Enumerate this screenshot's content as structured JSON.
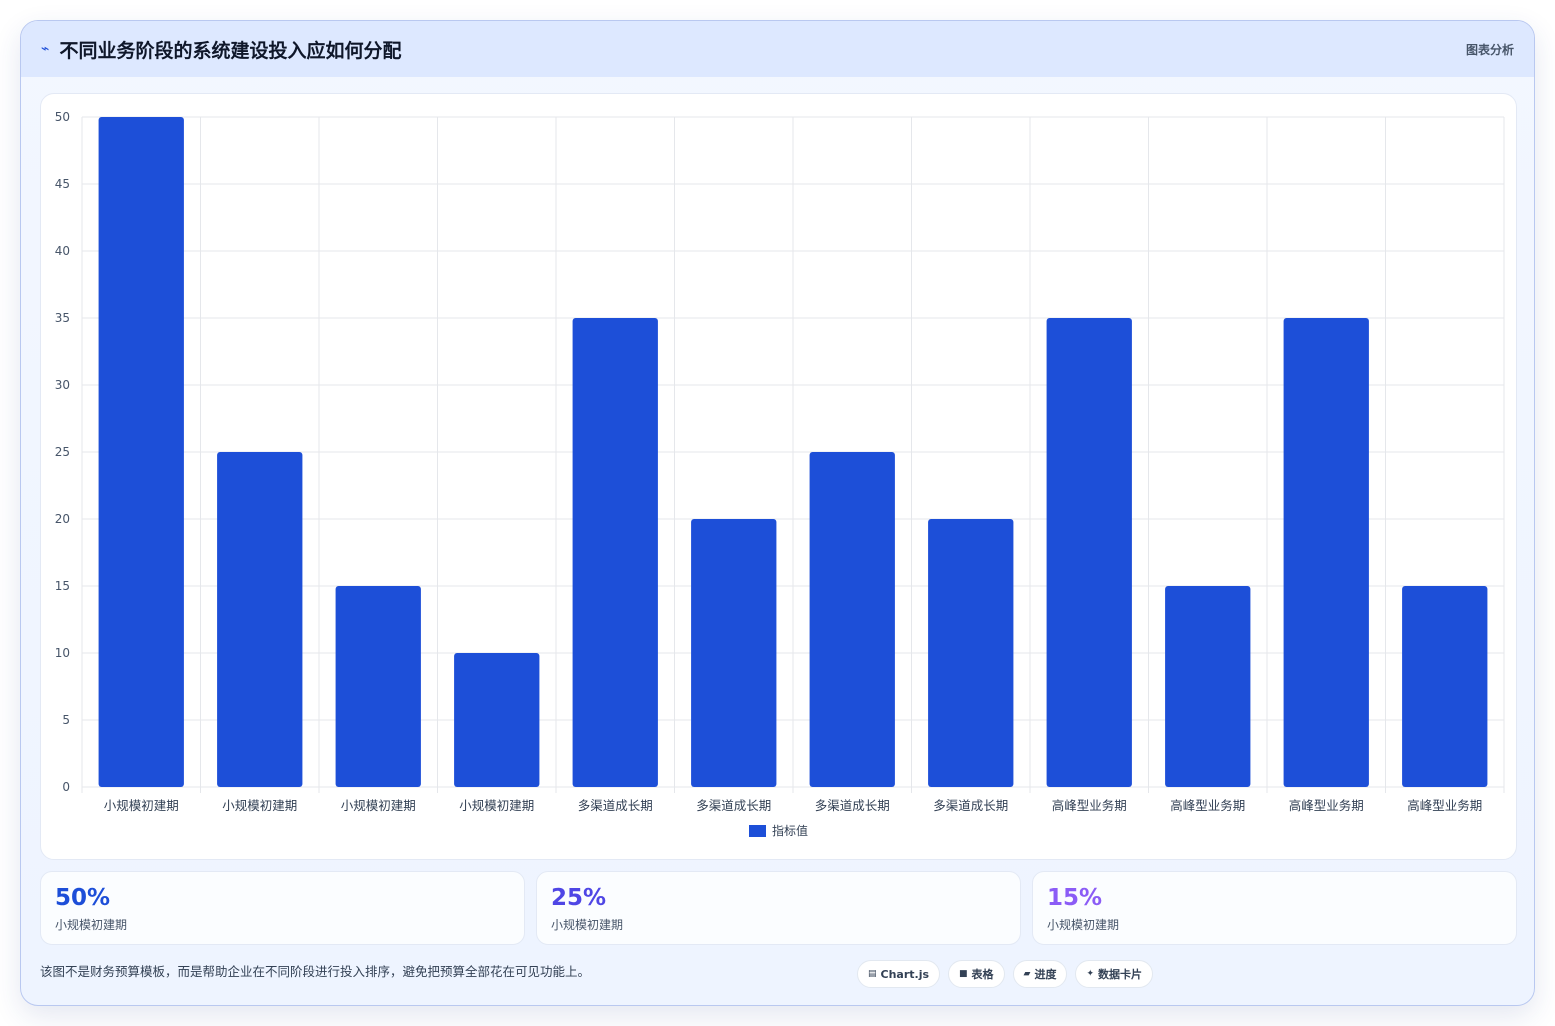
{
  "header": {
    "icon": "trend-icon",
    "title": "不同业务阶段的系统建设投入应如何分配",
    "tag": "图表分析"
  },
  "chart_data": {
    "type": "bar",
    "categories": [
      "小规模初建期",
      "小规模初建期",
      "小规模初建期",
      "小规模初建期",
      "多渠道成长期",
      "多渠道成长期",
      "多渠道成长期",
      "多渠道成长期",
      "高峰型业务期",
      "高峰型业务期",
      "高峰型业务期",
      "高峰型业务期"
    ],
    "series": [
      {
        "name": "指标值",
        "values": [
          50,
          25,
          15,
          10,
          35,
          20,
          25,
          20,
          35,
          15,
          35,
          15
        ],
        "color": "#1d4fd8"
      }
    ],
    "ylim": [
      0,
      50
    ],
    "yticks": [
      0,
      5,
      10,
      15,
      20,
      25,
      30,
      35,
      40,
      45,
      50
    ],
    "grid": true,
    "legend": "bottom"
  },
  "stats": [
    {
      "value": "50%",
      "label": "小规模初建期",
      "color": "#1d4ed8"
    },
    {
      "value": "25%",
      "label": "小规模初建期",
      "color": "#4f46e5"
    },
    {
      "value": "15%",
      "label": "小规模初建期",
      "color": "#8b5cf6"
    }
  ],
  "footer": {
    "note": "该图不是财务预算模板，而是帮助企业在不同阶段进行投入排序，避免把预算全部花在可见功能上。",
    "chips": [
      {
        "icon": "chart-icon",
        "glyph": "▤",
        "label": "Chart.js"
      },
      {
        "icon": "table-icon",
        "glyph": "■",
        "label": "表格"
      },
      {
        "icon": "progress-icon",
        "glyph": "▰",
        "label": "进度"
      },
      {
        "icon": "card-icon",
        "glyph": "✦",
        "label": "数据卡片"
      }
    ]
  }
}
